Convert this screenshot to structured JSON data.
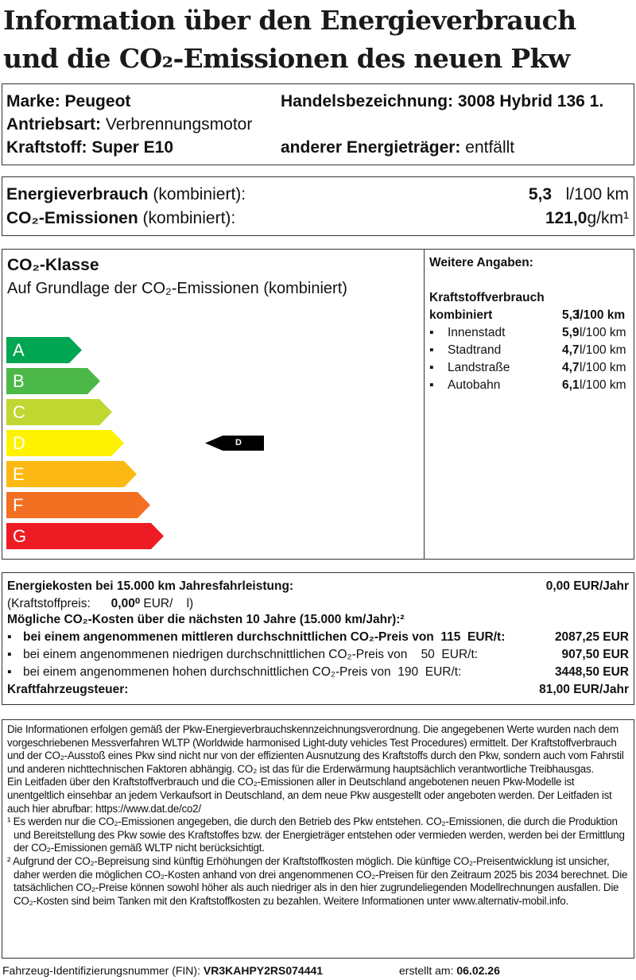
{
  "title": {
    "line1": "Information über den Energieverbrauch",
    "line2": "und die CO₂-Emissionen des neuen Pkw"
  },
  "vehicle": {
    "marke_label": "Marke:",
    "marke": "Peugeot",
    "handels_label": "Handelsbezeichnung:",
    "handels": "3008 Hybrid 136 1.",
    "antrieb_label": "Antriebsart:",
    "antrieb": "Verbrennungsmotor",
    "kraftstoff_label": "Kraftstoff:",
    "kraftstoff": "Super E10",
    "anderer_label": "anderer Energieträger:",
    "anderer": "entfällt"
  },
  "consumption": {
    "energie_label": "Energieverbrauch",
    "energie_suffix": "(kombiniert):",
    "energie_value": "5,3",
    "energie_unit": "l/100 km",
    "co2_label": "CO₂-Emissionen",
    "co2_suffix": "(kombiniert):",
    "co2_value": "121,0",
    "co2_unit": "g/km¹"
  },
  "co2_class": {
    "title": "CO₂-Klasse",
    "subtitle": "Auf Grundlage der CO₂-Emissionen (kombiniert)",
    "classes": [
      {
        "label": "A",
        "color": "#00a651"
      },
      {
        "label": "B",
        "color": "#4cb848"
      },
      {
        "label": "C",
        "color": "#bfd730"
      },
      {
        "label": "D",
        "color": "#fff200"
      },
      {
        "label": "E",
        "color": "#fdb913"
      },
      {
        "label": "F",
        "color": "#f36f21"
      },
      {
        "label": "G",
        "color": "#ed1c24"
      }
    ],
    "current": "D"
  },
  "further": {
    "title": "Weitere Angaben:",
    "subtitle": "Kraftstoffverbrauch",
    "kombiniert_label": "kombiniert",
    "kombiniert_value": "5,3",
    "kombiniert_unit": "l/100 km",
    "items": [
      {
        "label": "Innenstadt",
        "value": "5,9",
        "unit": "l/100 km"
      },
      {
        "label": "Stadtrand",
        "value": "4,7",
        "unit": "l/100 km"
      },
      {
        "label": "Landstraße",
        "value": "4,7",
        "unit": "l/100 km"
      },
      {
        "label": "Autobahn",
        "value": "6,1",
        "unit": "l/100 km"
      }
    ]
  },
  "costs": {
    "energie_label": "Energiekosten bei 15.000 km Jahresfahrleistung:",
    "energie_value": "0,00 EUR/Jahr",
    "preis_label": "(Kraftstoffpreis:",
    "preis_value": "0,00⁰",
    "preis_unit": "EUR/    l)",
    "co2_title": "Mögliche CO₂-Kosten über die nächsten 10 Jahre (15.000 km/Jahr):²",
    "scenarios": [
      {
        "text": "bei einem angenommenen mittleren durchschnittlichen CO₂-Preis von  115  EUR/t:",
        "value": "2087,25 EUR"
      },
      {
        "text": "bei einem angenommenen niedrigen durchschnittlichen CO₂-Preis von    50  EUR/t:",
        "value": "907,50 EUR"
      },
      {
        "text": "bei einem angenommenen hohen durchschnittlichen CO₂-Preis von  190  EUR/t:",
        "value": "3448,50 EUR"
      }
    ],
    "steuer_label": "Kraftfahrzeugsteuer:",
    "steuer_value": "81,00 EUR/Jahr"
  },
  "info": {
    "p1": "Die Informationen erfolgen gemäß der Pkw-Energieverbrauchskennzeichnungsverordnung. Die angegebenen Werte wurden nach dem vorgeschriebenen Messverfahren WLTP (Worldwide harmonised Light-duty vehicles Test Procedures) ermittelt. Der Kraftstoffverbrauch und der CO₂-Ausstoß eines Pkw sind nicht nur von der effizienten Ausnutzung des Kraftstoffs durch den Pkw, sondern auch vom Fahrstil und anderen nichttechnischen Faktoren abhängig. CO₂ ist das für die Erderwärmung hauptsächlich verantwortliche Treibhausgas.",
    "p2": "Ein Leitfaden über den Kraftstoffverbrauch und die CO₂-Emissionen aller in Deutschland angebotenen neuen Pkw-Modelle ist unentgeltlich einsehbar an jedem Verkaufsort in Deutschland, an dem neue Pkw ausgestellt oder angeboten werden. Der Leitfaden ist auch hier abrufbar:  https://www.dat.de/co2/",
    "fn1": "¹ Es werden nur die CO₂-Emissionen angegeben, die durch den Betrieb des Pkw entstehen. CO₂-Emissionen, die durch die Produktion und Bereitstellung des Pkw sowie des Kraftstoffes bzw. der Energieträger entstehen oder vermieden werden, werden bei der Ermittlung der CO₂-Emissionen gemäß WLTP nicht berücksichtigt.",
    "fn2": "² Aufgrund der CO₂-Bepreisung sind künftig Erhöhungen der Kraftstoffkosten möglich. Die künftige CO₂-Preisentwicklung ist unsicher, daher werden die möglichen CO₂-Kosten anhand von drei angenommenen CO₂-Preisen für den Zeitraum  2025 bis  2034  berechnet. Die tatsächlichen CO₂-Preise können sowohl höher als auch niedriger als in den hier zugrundeliegenden Modellrechnungen ausfallen. Die CO₂-Kosten sind beim Tanken mit den Kraftstoffkosten zu bezahlen. Weitere Informationen unter www.alternativ-mobil.info."
  },
  "footer": {
    "fin_label": "Fahrzeug-Identifizierungsnummer (FIN):",
    "fin": "VR3KAHPY2RS074441",
    "date_label": "erstellt am:",
    "date": "06.02.26"
  }
}
